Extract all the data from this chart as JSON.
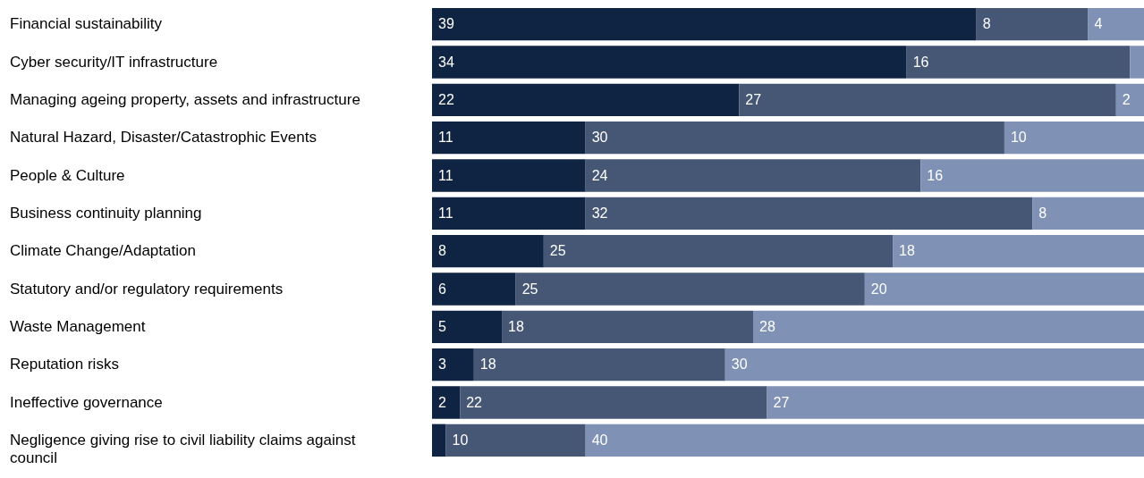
{
  "chart_data": {
    "type": "bar",
    "orientation": "horizontal",
    "stacked": true,
    "xlim": [
      0,
      51
    ],
    "categories": [
      "Financial sustainability",
      "Cyber security/IT infrastructure",
      "Managing ageing property, assets and infrastructure",
      "Natural Hazard, Disaster/Catastrophic Events",
      "People & Culture",
      "Business continuity planning",
      "Climate Change/Adaptation",
      "Statutory and/or regulatory requirements",
      "Waste Management",
      "Reputation risks",
      "Ineffective governance",
      "Negligence giving rise to civil liability claims against council"
    ],
    "series": [
      {
        "color": "#0f2342",
        "values": [
          39,
          34,
          22,
          11,
          11,
          11,
          8,
          6,
          5,
          3,
          2,
          1
        ],
        "value_labels": [
          "39",
          "34",
          "22",
          "11",
          "11",
          "11",
          "8",
          "6",
          "5",
          "3",
          "2",
          null
        ]
      },
      {
        "color": "#465675",
        "values": [
          8,
          16,
          27,
          30,
          24,
          32,
          25,
          25,
          18,
          18,
          22,
          10
        ],
        "value_labels": [
          "8",
          "16",
          "27",
          "30",
          "24",
          "32",
          "25",
          "25",
          "18",
          "18",
          "22",
          "10"
        ]
      },
      {
        "color": "#7f91b5",
        "values": [
          4,
          1,
          2,
          10,
          16,
          8,
          18,
          20,
          28,
          30,
          27,
          40
        ],
        "value_labels": [
          "4",
          null,
          "2",
          "10",
          "16",
          "8",
          "18",
          "20",
          "28",
          "30",
          "27",
          "40"
        ]
      }
    ]
  }
}
